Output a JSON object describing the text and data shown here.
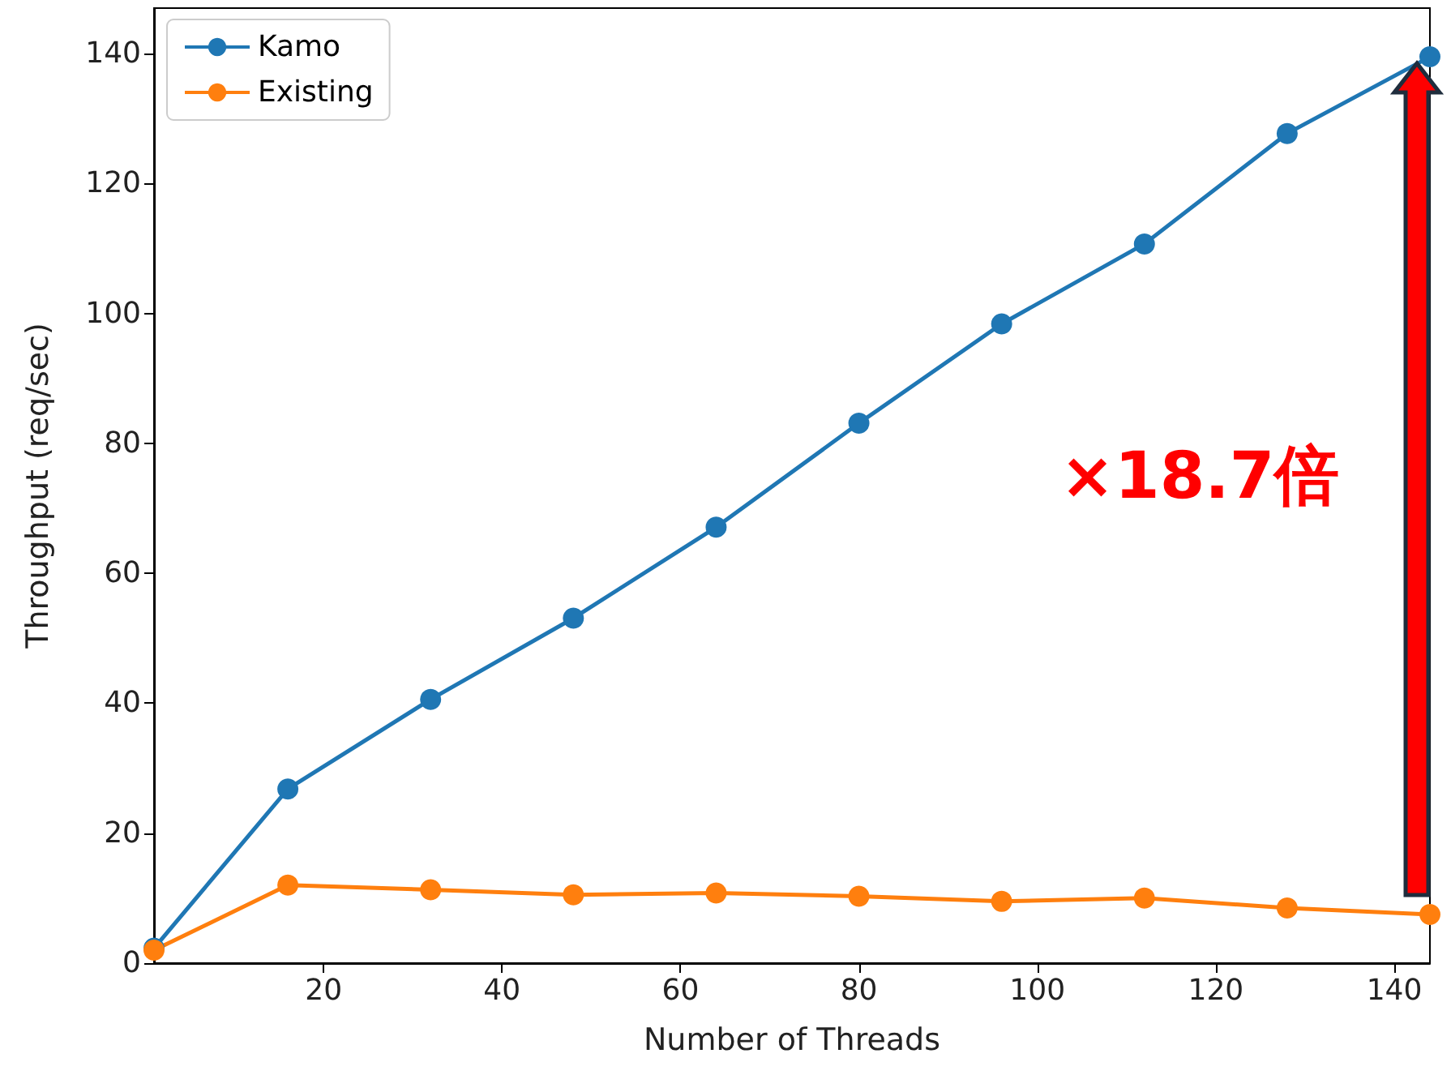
{
  "chart_data": {
    "type": "line",
    "xlabel": "Number of Threads",
    "ylabel": "Throughput (req/sec)",
    "x": [
      1,
      16,
      32,
      48,
      64,
      80,
      96,
      112,
      128,
      144
    ],
    "series": [
      {
        "name": "Kamo",
        "color": "#1f77b4",
        "values": [
          2.3,
          26.8,
          40.6,
          53.1,
          67.1,
          83.1,
          98.4,
          110.7,
          127.7,
          139.5
        ]
      },
      {
        "name": "Existing",
        "color": "#ff7f0e",
        "values": [
          2,
          12,
          11.3,
          10.5,
          10.8,
          10.3,
          9.5,
          10,
          8.5,
          7.5
        ]
      }
    ],
    "xlim": [
      1,
      144
    ],
    "xticks": [
      20,
      40,
      60,
      80,
      100,
      120,
      140
    ],
    "ylim": [
      0,
      147
    ],
    "yticks": [
      0,
      20,
      40,
      60,
      80,
      100,
      120,
      140
    ],
    "grid": false,
    "legend": "top left",
    "marker": "circle",
    "line_style": "solid",
    "annotations": [
      "×18.7倍"
    ]
  }
}
